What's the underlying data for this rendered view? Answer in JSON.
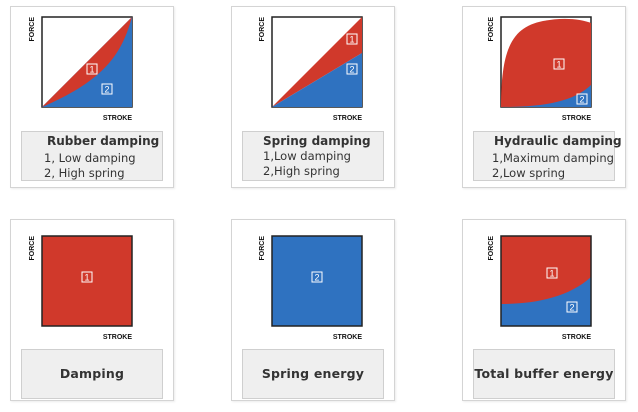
{
  "axes": {
    "y_label": "FORCE",
    "x_label": "STROKE"
  },
  "colors": {
    "damping": "#d0392b",
    "spring": "#2f72c0",
    "caption_bg": "#efefef",
    "border": "#d4d4d4"
  },
  "cards": [
    {
      "title": "Rubber damping",
      "lines": [
        "1, Low damping",
        "2, High spring"
      ],
      "badges": [
        "1",
        "2"
      ]
    },
    {
      "title": "Spring damping",
      "lines": [
        "1,Low damping",
        "2,High spring"
      ],
      "badges": [
        "1",
        "2"
      ]
    },
    {
      "title": "Hydraulic damping",
      "lines": [
        "1,Maximum damping",
        "2,Low spring"
      ],
      "badges": [
        "1",
        "2"
      ]
    },
    {
      "title": "Damping",
      "badges": [
        "1"
      ]
    },
    {
      "title": "Spring energy",
      "badges": [
        "2"
      ]
    },
    {
      "title": "Total buffer energy",
      "badges": [
        "1",
        "2"
      ]
    }
  ]
}
